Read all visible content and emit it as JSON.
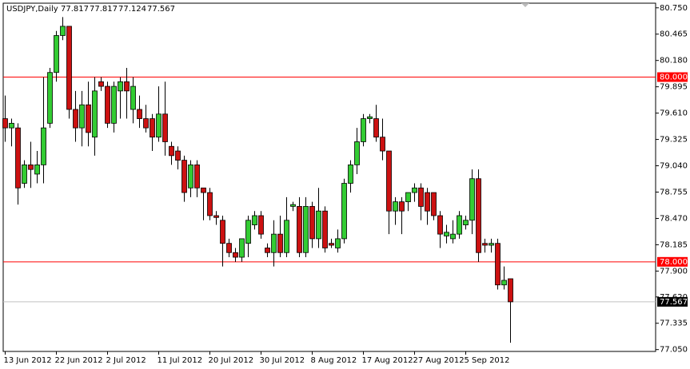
{
  "chart_data": {
    "type": "candlestick",
    "symbol": "USDJPY,Daily",
    "dates": [
      "13 Jun 2012",
      null,
      null,
      null,
      null,
      null,
      null,
      null,
      "22 Jun 2012",
      null,
      null,
      null,
      null,
      null,
      null,
      null,
      "2 Jul 2012",
      null,
      null,
      null,
      null,
      null,
      null,
      null,
      "11 Jul 2012",
      null,
      null,
      null,
      null,
      null,
      null,
      null,
      "20 Jul 2012",
      null,
      null,
      null,
      null,
      null,
      null,
      null,
      "30 Jul 2012",
      null,
      null,
      null,
      null,
      null,
      null,
      null,
      "8 Aug 2012",
      null,
      null,
      null,
      null,
      null,
      null,
      null,
      "17 Aug 2012",
      null,
      null,
      null,
      null,
      null,
      null,
      null,
      "27 Aug 2012",
      null,
      null,
      null,
      null,
      null,
      null,
      null,
      "5 Sep 2012",
      null,
      null,
      null,
      null,
      null,
      null,
      null
    ],
    "open": [
      79.55,
      79.45,
      79.45,
      78.85,
      79.05,
      78.95,
      79.05,
      79.5,
      80.05,
      80.45,
      80.55,
      79.65,
      79.45,
      79.7,
      79.35,
      79.95,
      79.9,
      79.5,
      79.85,
      79.95,
      79.65,
      79.65,
      79.55,
      79.55,
      79.35,
      79.6,
      79.25,
      79.2,
      79.1,
      78.8,
      79.05,
      78.8,
      78.75,
      78.5,
      78.45,
      78.2,
      78.1,
      78.05,
      78.2,
      78.4,
      78.5,
      78.15,
      78.1,
      78.3,
      78.1,
      78.6,
      78.6,
      78.1,
      78.6,
      78.25,
      78.55,
      78.2,
      78.15,
      78.25,
      78.85,
      79.05,
      79.3,
      79.55,
      79.55,
      79.35,
      79.2,
      78.55,
      78.65,
      78.65,
      78.75,
      78.8,
      78.75,
      78.75,
      78.5,
      78.28,
      78.25,
      78.3,
      78.4,
      78.45,
      78.9,
      78.2,
      78.18,
      78.2,
      77.75,
      77.817
    ],
    "high": [
      79.8,
      79.55,
      79.5,
      79.1,
      79.3,
      79.2,
      80.0,
      80.1,
      80.5,
      80.65,
      80.55,
      79.85,
      79.85,
      79.95,
      80.0,
      80.0,
      79.95,
      79.95,
      80.0,
      80.1,
      80.0,
      79.8,
      79.7,
      79.6,
      79.9,
      79.95,
      79.3,
      79.25,
      79.15,
      79.1,
      79.1,
      78.8,
      78.8,
      78.55,
      78.5,
      78.25,
      78.15,
      78.25,
      78.5,
      78.55,
      78.55,
      78.2,
      78.45,
      78.5,
      78.7,
      78.65,
      78.7,
      78.7,
      78.65,
      78.8,
      78.6,
      78.25,
      78.35,
      78.9,
      79.1,
      79.45,
      79.6,
      79.6,
      79.7,
      79.55,
      79.2,
      78.7,
      78.7,
      78.75,
      78.85,
      78.85,
      78.8,
      78.75,
      78.55,
      78.4,
      78.45,
      78.55,
      78.5,
      79.0,
      79.0,
      78.25,
      78.25,
      78.25,
      77.95,
      77.817
    ],
    "low": [
      79.3,
      79.25,
      78.62,
      78.8,
      78.8,
      78.85,
      78.85,
      79.45,
      79.95,
      80.4,
      79.55,
      79.3,
      79.25,
      79.25,
      79.15,
      79.85,
      79.45,
      79.4,
      79.55,
      79.55,
      79.5,
      79.45,
      79.4,
      79.2,
      79.3,
      79.15,
      79.05,
      79.0,
      78.65,
      78.7,
      78.7,
      78.45,
      78.45,
      78.4,
      77.95,
      78.05,
      78.0,
      78.0,
      78.05,
      78.35,
      78.25,
      78.05,
      77.95,
      78.05,
      78.05,
      78.55,
      78.05,
      78.05,
      78.15,
      78.15,
      78.1,
      78.15,
      78.1,
      78.2,
      78.75,
      78.95,
      79.25,
      79.5,
      79.3,
      79.1,
      78.3,
      78.4,
      78.3,
      78.55,
      78.65,
      78.45,
      78.4,
      78.45,
      78.15,
      78.2,
      78.2,
      78.25,
      78.35,
      78.3,
      78.0,
      78.1,
      78.1,
      77.7,
      77.7,
      77.124
    ],
    "close": [
      79.45,
      79.5,
      78.8,
      79.05,
      79.0,
      79.05,
      79.45,
      80.05,
      80.45,
      80.55,
      79.65,
      79.45,
      79.7,
      79.4,
      79.85,
      79.9,
      79.5,
      79.9,
      79.95,
      79.85,
      79.9,
      79.55,
      79.45,
      79.35,
      79.6,
      79.3,
      79.15,
      79.1,
      78.75,
      79.05,
      78.8,
      78.75,
      78.5,
      78.48,
      78.2,
      78.1,
      78.05,
      78.25,
      78.45,
      78.5,
      78.3,
      78.1,
      78.3,
      78.1,
      78.45,
      78.62,
      78.1,
      78.6,
      78.25,
      78.55,
      78.15,
      78.18,
      78.25,
      78.85,
      79.05,
      79.3,
      79.55,
      79.57,
      79.35,
      79.2,
      78.55,
      78.65,
      78.55,
      78.75,
      78.8,
      78.6,
      78.55,
      78.5,
      78.3,
      78.32,
      78.3,
      78.5,
      78.45,
      78.9,
      78.1,
      78.18,
      78.2,
      77.75,
      77.8,
      77.567
    ],
    "up_color": "#33cc33",
    "down_color": "#cc1111",
    "ylim": [
      77.03,
      80.8
    ],
    "yticks": [
      {
        "value": 80.75,
        "label": "80.750"
      },
      {
        "value": 80.465,
        "label": "80.465"
      },
      {
        "value": 80.18,
        "label": "80.180"
      },
      {
        "value": 79.895,
        "label": "79.895"
      },
      {
        "value": 79.61,
        "label": "79.610"
      },
      {
        "value": 79.325,
        "label": "79.325"
      },
      {
        "value": 79.04,
        "label": "79.040"
      },
      {
        "value": 78.755,
        "label": "78.755"
      },
      {
        "value": 78.47,
        "label": "78.470"
      },
      {
        "value": 78.185,
        "label": "78.185"
      },
      {
        "value": 77.9,
        "label": "77.900"
      },
      {
        "value": 77.62,
        "label": "77.620"
      },
      {
        "value": 77.335,
        "label": "77.335"
      },
      {
        "value": 77.05,
        "label": "77.050"
      }
    ],
    "levels": [
      {
        "value": 80,
        "label": "80.000"
      },
      {
        "value": 78,
        "label": "78.000"
      }
    ],
    "level_color": "#ff0000",
    "grid": false
  }
}
